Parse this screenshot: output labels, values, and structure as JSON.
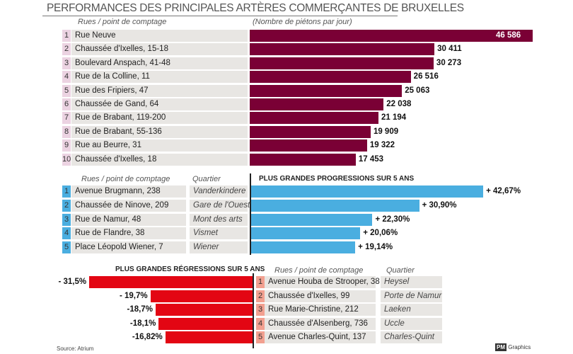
{
  "title": "PERFORMANCES DES PRINCIPALES ARTÈRES COMMERÇANTES DE BRUXELLES",
  "source": "Source: Atrium",
  "credit": "Graphics",
  "logo": "PM",
  "colors": {
    "top": "#7a0035",
    "progress": "#4aaee0",
    "regress": "#e30613",
    "row_bg": "#e8e6e3"
  },
  "chart_data": [
    {
      "type": "bar",
      "orientation": "horizontal",
      "col_header": "Rues / point de comptage",
      "unit_label": "(Nombre de piétons par jour)",
      "categories": [
        "Rue Neuve",
        "Chaussée d'Ixelles, 15-18",
        "Boulevard Anspach, 41-48",
        "Rue de la Colline, 11",
        "Rue des Fripiers, 47",
        "Chaussée de Gand, 64",
        "Rue de Brabant, 119-200",
        "Rue de Brabant, 55-136",
        "Rue au Beurre, 31",
        "Chaussée d'Ixelles, 18"
      ],
      "values": [
        46586,
        30411,
        30273,
        26516,
        25063,
        22038,
        21194,
        19909,
        19322,
        17453
      ],
      "labels": [
        "46 586",
        "30 411",
        "30 273",
        "26 516",
        "25 063",
        "22 038",
        "21 194",
        "19 909",
        "19 322",
        "17 453"
      ]
    },
    {
      "type": "bar",
      "orientation": "horizontal",
      "title": "PLUS GRANDES PROGRESSIONS SUR 5 ANS",
      "col_header": "Rues / point de comptage",
      "col_header2": "Quartier",
      "categories": [
        "Avenue Brugmann, 238",
        "Chaussée de Ninove, 209",
        "Rue de Namur, 48",
        "Rue de Flandre, 38",
        "Place Léopold Wiener, 7"
      ],
      "quartiers": [
        "Vanderkindere",
        "Gare de l'Ouest",
        "Mont des arts",
        "Vismet",
        "Wiener"
      ],
      "values": [
        42.67,
        30.9,
        22.3,
        20.06,
        19.14
      ],
      "labels": [
        "+ 42,67%",
        "+ 30,90%",
        "+ 22,30%",
        "+ 20,06%",
        "+ 19,14%"
      ]
    },
    {
      "type": "bar",
      "orientation": "horizontal",
      "title": "PLUS GRANDES RÉGRESSIONS SUR 5 ANS",
      "col_header": "Rues / point de comptage",
      "col_header2": "Quartier",
      "categories": [
        "Avenue Houba de Strooper, 38",
        "Chaussée d'Ixelles, 99",
        "Rue Marie-Christine, 212",
        "Chaussée d'Alsenberg, 736",
        "Avenue Charles-Quint, 137"
      ],
      "quartiers": [
        "Heysel",
        "Porte de Namur",
        "Laeken",
        "Uccle",
        "Charles-Quint"
      ],
      "values": [
        -31.5,
        -19.7,
        -18.7,
        -18.1,
        -16.82
      ],
      "labels": [
        "- 31,5%",
        "- 19,7%",
        "-18,7%",
        "-18,1%",
        "-16,82%"
      ]
    }
  ]
}
